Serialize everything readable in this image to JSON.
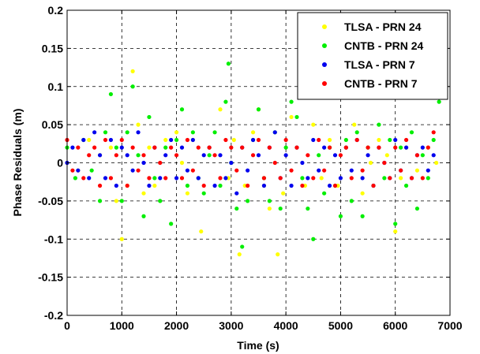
{
  "chart_data": {
    "type": "scatter",
    "title": "",
    "xlabel": "Time (s)",
    "ylabel": "Phase Residuals (m)",
    "xlim": [
      0,
      7000
    ],
    "ylim": [
      -0.2,
      0.2
    ],
    "xticks": [
      0,
      1000,
      2000,
      3000,
      4000,
      5000,
      6000,
      7000
    ],
    "xtick_labels": [
      "0",
      "1000",
      "2000",
      "3000",
      "4000",
      "5000",
      "6000",
      "7000"
    ],
    "yticks": [
      -0.2,
      -0.15,
      -0.1,
      -0.05,
      0,
      0.05,
      0.1,
      0.15,
      0.2
    ],
    "ytick_labels": [
      "-0.2",
      "-0.15",
      "-0.1",
      "-0.05",
      "0",
      "0.05",
      "0.1",
      "0.15",
      "0.2"
    ],
    "grid": true,
    "legend_position": "top-right",
    "series": [
      {
        "name": "TLSA - PRN 24",
        "color": "#ffff00",
        "x": [
          0,
          200,
          400,
          600,
          800,
          900,
          1000,
          1100,
          1200,
          1300,
          1400,
          1500,
          1600,
          1800,
          2000,
          2100,
          2200,
          2300,
          2450,
          2600,
          2800,
          2950,
          3050,
          3150,
          3250,
          3400,
          3500,
          3600,
          3700,
          3850,
          3950,
          4100,
          4200,
          4350,
          4500,
          4650,
          4800,
          4950,
          5100,
          5250,
          5400,
          5550,
          5700,
          5850,
          6000,
          6100,
          6200,
          6400,
          6600,
          6750
        ],
        "y": [
          0.0,
          -0.01,
          0.03,
          0.01,
          0.02,
          -0.05,
          -0.1,
          -0.03,
          0.12,
          0.05,
          -0.04,
          0.02,
          -0.03,
          0.03,
          0.04,
          0.0,
          -0.04,
          0.03,
          -0.09,
          0.02,
          0.07,
          -0.02,
          0.03,
          -0.12,
          -0.03,
          0.04,
          0.07,
          -0.03,
          -0.06,
          -0.12,
          -0.04,
          0.06,
          0.02,
          -0.03,
          0.05,
          -0.02,
          0.03,
          -0.03,
          0.02,
          0.05,
          -0.04,
          0.0,
          0.03,
          0.01,
          -0.09,
          -0.02,
          0.02,
          -0.01,
          0.02,
          0.0
        ]
      },
      {
        "name": "CNTB - PRN 24",
        "color": "#00ee00",
        "x": [
          0,
          150,
          300,
          450,
          600,
          700,
          800,
          900,
          1000,
          1100,
          1200,
          1300,
          1400,
          1500,
          1600,
          1700,
          1800,
          1900,
          2000,
          2100,
          2200,
          2300,
          2400,
          2500,
          2600,
          2700,
          2800,
          2900,
          2950,
          3000,
          3100,
          3200,
          3300,
          3400,
          3500,
          3600,
          3700,
          3800,
          3900,
          4000,
          4100,
          4200,
          4300,
          4400,
          4500,
          4600,
          4700,
          4800,
          4900,
          5000,
          5100,
          5200,
          5300,
          5400,
          5500,
          5600,
          5700,
          5800,
          5900,
          6000,
          6100,
          6200,
          6300,
          6400,
          6500,
          6600,
          6700,
          6800
        ],
        "y": [
          0.02,
          -0.02,
          0.03,
          -0.01,
          -0.05,
          0.04,
          0.09,
          0.02,
          -0.05,
          0.04,
          0.1,
          0.01,
          -0.07,
          0.06,
          -0.02,
          -0.05,
          0.02,
          -0.08,
          0.03,
          0.07,
          -0.03,
          0.04,
          -0.02,
          -0.04,
          0.01,
          0.04,
          -0.03,
          0.08,
          0.13,
          0.0,
          -0.06,
          -0.11,
          -0.05,
          0.03,
          0.07,
          -0.02,
          -0.05,
          0.04,
          -0.06,
          0.02,
          0.08,
          0.06,
          -0.02,
          -0.06,
          -0.1,
          0.01,
          -0.04,
          0.02,
          -0.03,
          -0.07,
          0.03,
          -0.05,
          0.04,
          -0.07,
          0.02,
          -0.03,
          0.05,
          -0.02,
          0.03,
          -0.08,
          0.02,
          -0.03,
          0.04,
          -0.06,
          0.01,
          -0.02,
          0.03,
          0.08
        ]
      },
      {
        "name": "TLSA - PRN 7",
        "color": "#0000ee",
        "x": [
          0,
          100,
          200,
          300,
          400,
          500,
          600,
          700,
          800,
          900,
          1000,
          1100,
          1200,
          1300,
          1400,
          1500,
          1600,
          1700,
          1800,
          1900,
          2000,
          2100,
          2200,
          2300,
          2400,
          2500,
          2600,
          2700,
          2800,
          2900,
          3000,
          3100,
          3200,
          3300,
          3400,
          3500,
          3600,
          3700,
          3800,
          3900,
          4000,
          4100,
          4200,
          4300,
          4400,
          4500,
          4600,
          4700,
          4800,
          4900,
          5000,
          5100,
          5200,
          5300,
          5400,
          5500,
          5600,
          5700,
          5800,
          5900,
          6000,
          6100,
          6200,
          6300,
          6400,
          6500,
          6600,
          6700
        ],
        "y": [
          0.0,
          0.02,
          -0.01,
          0.03,
          -0.02,
          0.04,
          0.01,
          -0.02,
          0.03,
          -0.03,
          0.02,
          0.01,
          -0.01,
          0.04,
          0.0,
          -0.03,
          0.02,
          -0.02,
          0.01,
          0.03,
          -0.02,
          0.02,
          -0.01,
          0.03,
          -0.02,
          0.01,
          0.02,
          -0.03,
          0.01,
          -0.02,
          0.0,
          -0.04,
          0.02,
          -0.01,
          0.03,
          0.01,
          -0.03,
          0.02,
          0.04,
          -0.02,
          0.01,
          -0.03,
          0.02,
          0.0,
          -0.02,
          0.03,
          -0.01,
          0.02,
          -0.03,
          0.01,
          -0.02,
          0.02,
          -0.01,
          0.03,
          -0.02,
          0.01,
          -0.03,
          0.02,
          0.0,
          -0.02,
          0.03,
          -0.01,
          0.02,
          -0.02,
          0.01,
          0.02,
          -0.01,
          0.01
        ]
      },
      {
        "name": "CNTB - PRN 7",
        "color": "#ff0000",
        "x": [
          0,
          100,
          200,
          300,
          400,
          500,
          600,
          700,
          800,
          900,
          1000,
          1100,
          1200,
          1300,
          1400,
          1500,
          1600,
          1700,
          1800,
          1900,
          2000,
          2100,
          2200,
          2300,
          2400,
          2500,
          2600,
          2700,
          2800,
          2900,
          3000,
          3100,
          3200,
          3300,
          3400,
          3500,
          3600,
          3700,
          3800,
          3900,
          4000,
          4100,
          4200,
          4300,
          4400,
          4500,
          4600,
          4700,
          4800,
          4900,
          5000,
          5100,
          5200,
          5300,
          5400,
          5500,
          5600,
          5700,
          5800,
          5900,
          6000,
          6100,
          6200,
          6300,
          6400,
          6500,
          6600,
          6700
        ],
        "y": [
          0.03,
          -0.01,
          0.02,
          -0.02,
          0.01,
          0.02,
          -0.03,
          0.03,
          -0.02,
          0.01,
          0.03,
          -0.03,
          0.02,
          -0.01,
          0.01,
          -0.02,
          0.02,
          0.0,
          -0.02,
          0.02,
          0.01,
          -0.02,
          0.03,
          -0.01,
          0.02,
          -0.03,
          0.02,
          0.01,
          -0.02,
          0.03,
          0.02,
          -0.01,
          0.02,
          -0.03,
          0.01,
          0.03,
          -0.02,
          0.02,
          0.0,
          -0.02,
          0.03,
          -0.01,
          0.02,
          -0.03,
          0.01,
          -0.02,
          0.03,
          -0.01,
          0.02,
          -0.03,
          0.01,
          0.02,
          -0.02,
          0.03,
          -0.01,
          0.02,
          -0.03,
          0.02,
          0.0,
          -0.02,
          0.02,
          -0.01,
          0.03,
          -0.02,
          0.01,
          -0.02,
          0.02,
          0.04
        ]
      }
    ]
  }
}
